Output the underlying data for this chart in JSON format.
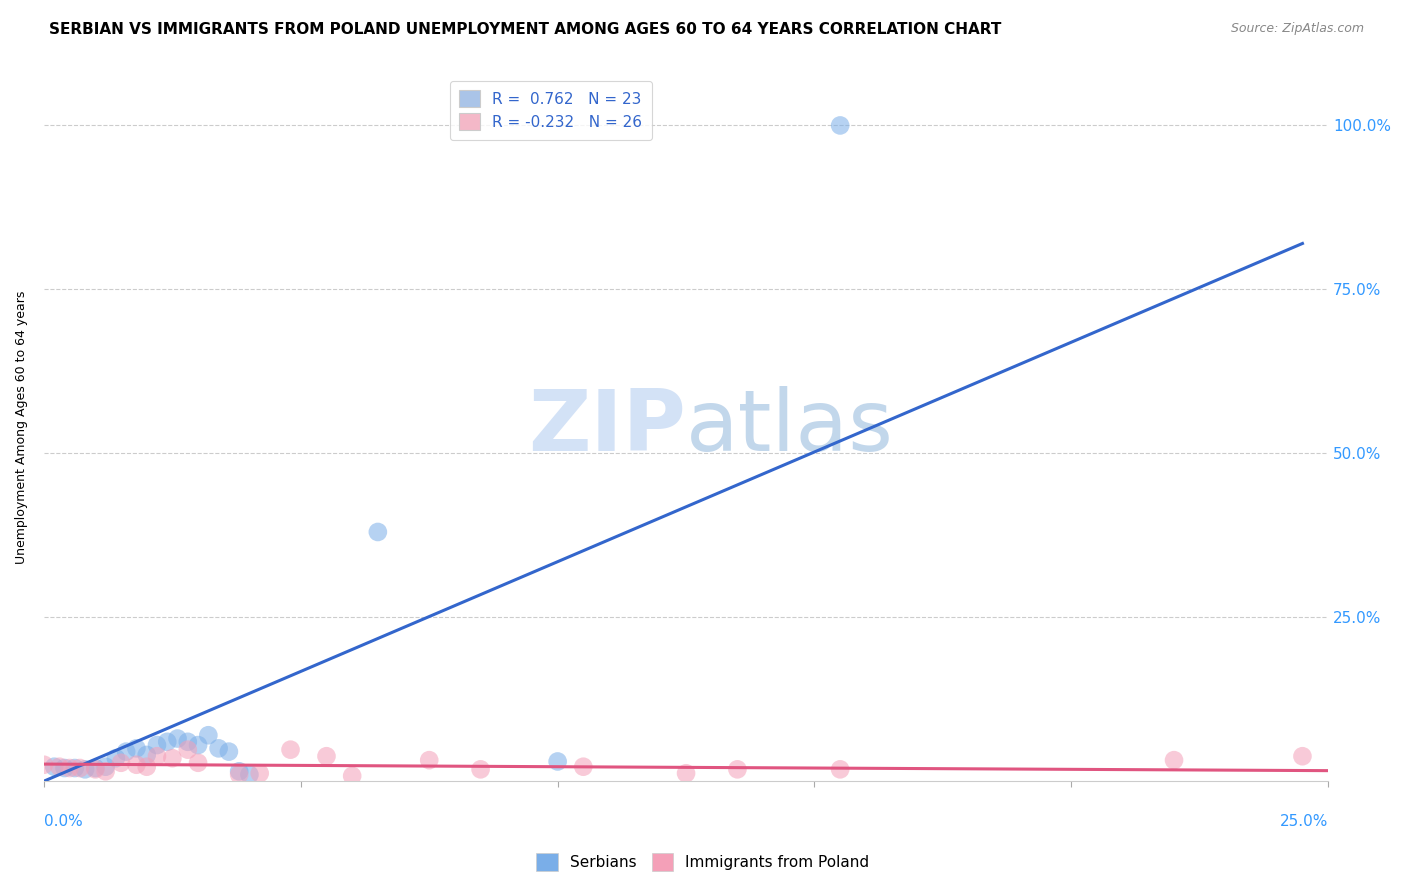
{
  "title": "SERBIAN VS IMMIGRANTS FROM POLAND UNEMPLOYMENT AMONG AGES 60 TO 64 YEARS CORRELATION CHART",
  "source": "Source: ZipAtlas.com",
  "ylabel": "Unemployment Among Ages 60 to 64 years",
  "ytick_labels": [
    "100.0%",
    "75.0%",
    "50.0%",
    "25.0%"
  ],
  "ytick_values": [
    1.0,
    0.75,
    0.5,
    0.25
  ],
  "xlim": [
    0.0,
    0.25
  ],
  "ylim": [
    0.0,
    1.08
  ],
  "legend_entries": [
    {
      "label": "R =  0.762   N = 23",
      "color": "#aac4e8"
    },
    {
      "label": "R = -0.232   N = 26",
      "color": "#f4b8c8"
    }
  ],
  "watermark_zip": "ZIP",
  "watermark_atlas": "atlas",
  "serbian_color": "#7aaee8",
  "poland_color": "#f4a0b8",
  "serbian_line_color": "#3366cc",
  "poland_line_color": "#e05580",
  "serbian_scatter": [
    [
      0.002,
      0.022
    ],
    [
      0.004,
      0.02
    ],
    [
      0.006,
      0.02
    ],
    [
      0.008,
      0.018
    ],
    [
      0.01,
      0.02
    ],
    [
      0.012,
      0.022
    ],
    [
      0.014,
      0.035
    ],
    [
      0.016,
      0.045
    ],
    [
      0.018,
      0.05
    ],
    [
      0.02,
      0.04
    ],
    [
      0.022,
      0.055
    ],
    [
      0.024,
      0.06
    ],
    [
      0.026,
      0.065
    ],
    [
      0.028,
      0.06
    ],
    [
      0.03,
      0.055
    ],
    [
      0.032,
      0.07
    ],
    [
      0.034,
      0.05
    ],
    [
      0.036,
      0.045
    ],
    [
      0.038,
      0.015
    ],
    [
      0.04,
      0.01
    ],
    [
      0.065,
      0.38
    ],
    [
      0.1,
      0.03
    ],
    [
      0.155,
      1.0
    ]
  ],
  "poland_scatter": [
    [
      0.0,
      0.025
    ],
    [
      0.003,
      0.022
    ],
    [
      0.005,
      0.02
    ],
    [
      0.007,
      0.02
    ],
    [
      0.01,
      0.018
    ],
    [
      0.012,
      0.015
    ],
    [
      0.015,
      0.028
    ],
    [
      0.018,
      0.025
    ],
    [
      0.02,
      0.022
    ],
    [
      0.022,
      0.038
    ],
    [
      0.025,
      0.035
    ],
    [
      0.028,
      0.048
    ],
    [
      0.03,
      0.028
    ],
    [
      0.038,
      0.01
    ],
    [
      0.042,
      0.012
    ],
    [
      0.048,
      0.048
    ],
    [
      0.055,
      0.038
    ],
    [
      0.06,
      0.008
    ],
    [
      0.075,
      0.032
    ],
    [
      0.085,
      0.018
    ],
    [
      0.105,
      0.022
    ],
    [
      0.125,
      0.012
    ],
    [
      0.135,
      0.018
    ],
    [
      0.155,
      0.018
    ],
    [
      0.22,
      0.032
    ],
    [
      0.245,
      0.038
    ]
  ],
  "serbian_line_x": [
    0.0,
    0.245
  ],
  "serbian_line_y": [
    0.0,
    0.82
  ],
  "poland_line_x": [
    0.0,
    0.25
  ],
  "poland_line_y": [
    0.026,
    0.016
  ],
  "background_color": "#ffffff",
  "grid_color": "#cccccc",
  "title_fontsize": 11,
  "axis_label_fontsize": 9,
  "legend_fontsize": 11,
  "scatter_size": 180
}
